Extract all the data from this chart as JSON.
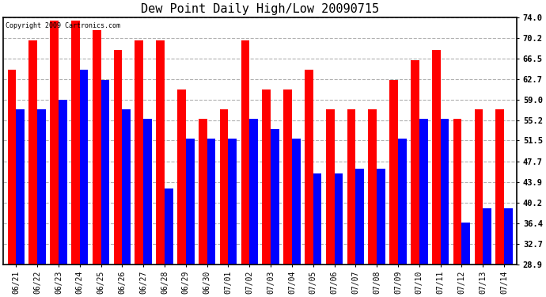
{
  "title": "Dew Point Daily High/Low 20090715",
  "copyright": "Copyright 2009 Cartronics.com",
  "dates": [
    "06/21",
    "06/22",
    "06/23",
    "06/24",
    "06/25",
    "06/26",
    "06/27",
    "06/28",
    "06/29",
    "06/30",
    "07/01",
    "07/02",
    "07/03",
    "07/04",
    "07/05",
    "07/06",
    "07/07",
    "07/08",
    "07/09",
    "07/10",
    "07/11",
    "07/12",
    "07/13",
    "07/14"
  ],
  "highs": [
    64.4,
    69.8,
    73.4,
    73.4,
    71.6,
    68.0,
    69.8,
    69.8,
    60.8,
    55.4,
    57.2,
    69.8,
    60.8,
    60.8,
    64.4,
    57.2,
    57.2,
    57.2,
    62.6,
    66.2,
    68.0,
    55.4,
    57.2,
    57.2
  ],
  "lows": [
    57.2,
    57.2,
    59.0,
    64.4,
    62.6,
    57.2,
    55.4,
    42.8,
    51.8,
    51.8,
    51.8,
    55.4,
    53.6,
    51.8,
    45.5,
    45.5,
    46.4,
    46.4,
    51.8,
    55.4,
    55.4,
    36.5,
    39.2,
    39.2
  ],
  "high_color": "#ff0000",
  "low_color": "#0000ff",
  "bg_color": "#ffffff",
  "grid_color": "#b0b0b0",
  "yticks": [
    28.9,
    32.7,
    36.4,
    40.2,
    43.9,
    47.7,
    51.5,
    55.2,
    59.0,
    62.7,
    66.5,
    70.2,
    74.0
  ],
  "ymin": 28.9,
  "ymax": 74.0,
  "bar_width": 0.4
}
